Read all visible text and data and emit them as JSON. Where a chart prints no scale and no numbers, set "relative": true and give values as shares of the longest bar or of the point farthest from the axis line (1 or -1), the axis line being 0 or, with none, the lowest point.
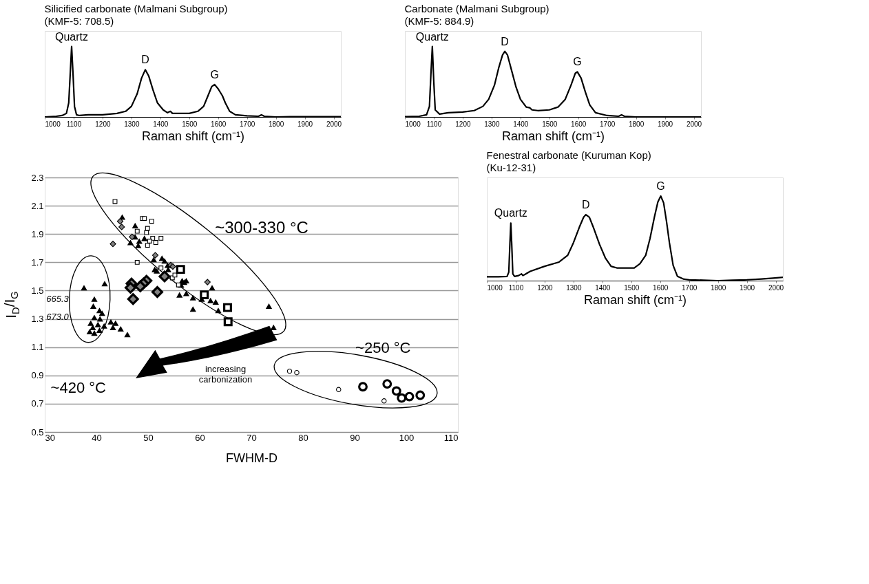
{
  "chart_data": [
    {
      "type": "line",
      "title": "Silicified carbonate (Malmani Subgroup)",
      "subtitle": "(KMF-5: 708.5)",
      "xlabel": "Raman shift (cm⁻¹)",
      "relative": true,
      "xlim": [
        1000,
        2025
      ],
      "xticks": [
        1000,
        1100,
        1200,
        1300,
        1400,
        1500,
        1600,
        1700,
        1800,
        1900,
        2000
      ],
      "annotations": [
        {
          "text": "Quartz",
          "x": 1093,
          "y": 1.0
        },
        {
          "text": "D",
          "x": 1348,
          "y": 0.67
        },
        {
          "text": "G",
          "x": 1588,
          "y": 0.46
        }
      ],
      "series": [
        {
          "color": "#000000",
          "x": [
            1000,
            1040,
            1060,
            1075,
            1083,
            1088,
            1093,
            1098,
            1103,
            1110,
            1120,
            1150,
            1200,
            1250,
            1280,
            1300,
            1320,
            1335,
            1348,
            1360,
            1375,
            1390,
            1410,
            1425,
            1435,
            1442,
            1470,
            1500,
            1530,
            1550,
            1565,
            1578,
            1588,
            1600,
            1615,
            1625,
            1640,
            1660,
            1700,
            1740,
            1750,
            1760,
            1800,
            1850,
            1900,
            1950,
            2000,
            2025
          ],
          "values": [
            0.0,
            0.01,
            0.02,
            0.05,
            0.2,
            0.6,
            1.0,
            0.6,
            0.15,
            0.03,
            0.02,
            0.03,
            0.03,
            0.05,
            0.08,
            0.15,
            0.33,
            0.55,
            0.67,
            0.58,
            0.38,
            0.2,
            0.1,
            0.06,
            0.08,
            0.05,
            0.05,
            0.05,
            0.08,
            0.15,
            0.3,
            0.43,
            0.46,
            0.4,
            0.3,
            0.2,
            0.08,
            0.03,
            0.015,
            0.01,
            0.03,
            0.01,
            0.0,
            0.005,
            0.005,
            0.005,
            0.005,
            0.005
          ]
        }
      ]
    },
    {
      "type": "line",
      "title": "Carbonate (Malmani Subgroup)",
      "subtitle": "(KMF-5: 884.9)",
      "xlabel": "Raman shift (cm⁻¹)",
      "relative": true,
      "xlim": [
        1000,
        2025
      ],
      "xticks": [
        1000,
        1100,
        1200,
        1300,
        1400,
        1500,
        1600,
        1700,
        1800,
        1900,
        2000
      ],
      "annotations": [
        {
          "text": "Quartz",
          "x": 1095,
          "y": 1.0
        },
        {
          "text": "D",
          "x": 1346,
          "y": 0.93
        },
        {
          "text": "G",
          "x": 1597,
          "y": 0.64
        }
      ],
      "series": [
        {
          "color": "#000000",
          "x": [
            1000,
            1050,
            1075,
            1085,
            1090,
            1095,
            1100,
            1105,
            1120,
            1150,
            1200,
            1240,
            1270,
            1290,
            1310,
            1325,
            1338,
            1346,
            1355,
            1370,
            1385,
            1400,
            1420,
            1432,
            1440,
            1460,
            1500,
            1530,
            1555,
            1575,
            1590,
            1597,
            1610,
            1625,
            1640,
            1660,
            1700,
            1740,
            1750,
            1760,
            1800,
            1900,
            2000,
            2025
          ],
          "values": [
            0.005,
            0.01,
            0.03,
            0.15,
            0.6,
            1.0,
            0.5,
            0.1,
            0.04,
            0.06,
            0.07,
            0.09,
            0.15,
            0.25,
            0.45,
            0.7,
            0.88,
            0.93,
            0.88,
            0.65,
            0.42,
            0.25,
            0.14,
            0.13,
            0.1,
            0.09,
            0.1,
            0.14,
            0.25,
            0.45,
            0.62,
            0.64,
            0.55,
            0.35,
            0.17,
            0.06,
            0.02,
            0.01,
            0.03,
            0.01,
            0.0,
            0.0,
            0.0,
            0.0
          ]
        }
      ]
    },
    {
      "type": "bubble",
      "xlabel": "FWHM-D",
      "ylabel": "I$_{D}$/I$_{G}$",
      "xlim": [
        30,
        110
      ],
      "xticks": [
        30,
        40,
        50,
        60,
        70,
        80,
        90,
        100,
        110
      ],
      "ylim": [
        0.5,
        2.3
      ],
      "yticks": [
        0.5,
        0.7,
        0.9,
        1.1,
        1.3,
        1.5,
        1.7,
        1.9,
        2.1,
        2.3
      ],
      "grid": "y",
      "annotations": [
        "~300-330 °C",
        "~420 °C",
        "~250 °C",
        "665.3",
        "673.0",
        "increasing carbonization"
      ],
      "series": [
        {
          "color": "#000000",
          "marker": "triangle",
          "x": [
            45.0,
            47.5,
            46.6,
            47.5,
            48.3,
            49.3,
            48.1,
            51.1,
            52.7,
            53.2,
            53.8,
            51.3,
            51.7,
            53.9,
            56.6,
            57.0,
            57.4,
            56.4,
            56.1,
            57.4,
            58.7,
            62.4,
            60.4,
            62.1,
            63.1,
            58.7,
            63.6,
            73.4,
            74.3,
            37.6,
            41.6,
            39.6,
            46.0,
            39.4,
            40.6,
            41.1,
            39.6,
            40.7,
            38.9,
            40.3,
            41.5,
            42.8,
            39.3,
            38.7,
            39.6,
            40.6,
            43.2,
            43.7,
            44.7
          ],
          "values": [
            2.02,
            1.96,
            1.84,
            1.88,
            1.85,
            1.87,
            1.82,
            1.72,
            1.73,
            1.71,
            1.68,
            1.65,
            1.64,
            1.65,
            1.57,
            1.56,
            1.57,
            1.54,
            1.47,
            1.48,
            1.45,
            1.52,
            1.44,
            1.43,
            1.42,
            1.37,
            1.36,
            1.39,
            1.24,
            1.52,
            1.55,
            1.44,
            1.19,
            1.39,
            1.36,
            1.34,
            1.31,
            1.3,
            1.27,
            1.26,
            1.25,
            1.28,
            1.24,
            1.21,
            1.2,
            1.22,
            1.24,
            1.27,
            1.23
          ],
          "sizes": [
            0.3,
            0.3,
            0.3,
            0.3,
            0.3,
            0.3,
            0.3,
            0.3,
            0.3,
            0.3,
            0.3,
            0.3,
            0.3,
            0.3,
            0.3,
            0.3,
            0.3,
            0.3,
            0.3,
            0.3,
            0.3,
            0.3,
            0.3,
            0.3,
            0.3,
            0.3,
            0.3,
            0.3,
            0.3,
            0.3,
            0.3,
            0.3,
            0.3,
            0.3,
            0.3,
            0.3,
            0.3,
            0.3,
            0.3,
            0.3,
            0.3,
            0.3,
            0.3,
            0.3,
            0.3,
            0.3,
            0.3,
            0.3,
            0.3
          ]
        },
        {
          "color": "#808080",
          "marker": "diamond",
          "x": [
            44.6,
            44.9,
            46.9,
            43.2,
            51.4,
            54.4,
            54.8,
            61.5
          ],
          "values": [
            1.99,
            1.95,
            1.88,
            1.83,
            1.75,
            1.68,
            1.67,
            1.56
          ],
          "sizes": [
            0.3,
            0.3,
            0.3,
            0.3,
            0.3,
            0.3,
            0.3,
            0.3
          ]
        },
        {
          "color": "#ffffff",
          "marker": "square",
          "x": [
            43.6,
            48.9,
            49.3,
            50.7,
            47.9,
            49.9,
            49.7,
            50.9,
            52.5,
            51.5,
            49.9,
            50.3,
            47.9,
            52.5,
            54.7,
            55.2,
            55.9
          ],
          "values": [
            2.13,
            2.01,
            2.01,
            1.99,
            1.92,
            1.94,
            1.91,
            1.87,
            1.87,
            1.84,
            1.82,
            1.85,
            1.7,
            1.66,
            1.59,
            1.61,
            1.54
          ],
          "sizes": [
            0.3,
            0.3,
            0.3,
            0.3,
            0.3,
            0.3,
            0.3,
            0.3,
            0.3,
            0.3,
            0.3,
            0.3,
            0.3,
            0.3,
            0.3,
            0.3,
            0.3
          ]
        },
        {
          "color": "#ffffff",
          "marker": "circle",
          "x": [
            77.4,
            78.8,
            86.9,
            95.7
          ],
          "values": [
            0.93,
            0.92,
            0.8,
            0.72
          ],
          "sizes": [
            0.3,
            0.3,
            0.3,
            0.3
          ]
        },
        {
          "color": "#808080",
          "marker": "diamond",
          "x": [
            49.7,
            49.1,
            46.8,
            46.6,
            48.5,
            51.8,
            47.1,
            53.2
          ],
          "values": [
            1.57,
            1.55,
            1.55,
            1.52,
            1.53,
            1.49,
            1.44,
            1.6
          ],
          "sizes": [
            1,
            1,
            1,
            1,
            1,
            1,
            1,
            1
          ]
        },
        {
          "color": "#ffffff",
          "marker": "square",
          "x": [
            56.3,
            60.9,
            65.4,
            65.5
          ],
          "values": [
            1.65,
            1.47,
            1.38,
            1.28
          ],
          "sizes": [
            1,
            1,
            1,
            1
          ]
        },
        {
          "color": "#ffffff",
          "marker": "circle",
          "x": [
            91.6,
            96.3,
            98.1,
            99.1,
            100.6,
            102.7
          ],
          "values": [
            0.82,
            0.84,
            0.79,
            0.74,
            0.75,
            0.76
          ],
          "sizes": [
            1,
            1,
            1,
            1,
            1,
            1
          ]
        }
      ]
    },
    {
      "type": "line",
      "title": "Fenestral carbonate (Kuruman Kop)",
      "subtitle": "(Ku-12-31)",
      "xlabel": "Raman shift (cm⁻¹)",
      "relative": true,
      "xlim": [
        1000,
        2025
      ],
      "xticks": [
        1000,
        1100,
        1200,
        1300,
        1400,
        1500,
        1600,
        1700,
        1800,
        1900,
        2000
      ],
      "annotations": [
        {
          "text": "Quartz",
          "x": 1083,
          "y": 0.68
        },
        {
          "text": "D",
          "x": 1343,
          "y": 0.78
        },
        {
          "text": "G",
          "x": 1602,
          "y": 1.0
        }
      ],
      "series": [
        {
          "color": "#000000",
          "x": [
            1000,
            1040,
            1070,
            1076,
            1080,
            1083,
            1086,
            1090,
            1096,
            1110,
            1120,
            1125,
            1150,
            1200,
            1250,
            1280,
            1300,
            1320,
            1335,
            1343,
            1355,
            1370,
            1390,
            1410,
            1430,
            1450,
            1480,
            1510,
            1530,
            1550,
            1565,
            1580,
            1592,
            1602,
            1612,
            1622,
            1632,
            1645,
            1660,
            1680,
            1700,
            1750,
            1800,
            1850,
            1900,
            1950,
            1990,
            2025
          ],
          "values": [
            0.045,
            0.045,
            0.05,
            0.1,
            0.45,
            0.68,
            0.45,
            0.08,
            0.05,
            0.06,
            0.08,
            0.06,
            0.11,
            0.17,
            0.22,
            0.3,
            0.45,
            0.63,
            0.75,
            0.78,
            0.75,
            0.62,
            0.43,
            0.27,
            0.17,
            0.15,
            0.15,
            0.15,
            0.2,
            0.3,
            0.5,
            0.75,
            0.93,
            1.0,
            0.92,
            0.7,
            0.45,
            0.18,
            0.05,
            0.02,
            0.01,
            0.005,
            0.0,
            0.005,
            0.01,
            0.02,
            0.03,
            0.04
          ]
        }
      ]
    }
  ]
}
